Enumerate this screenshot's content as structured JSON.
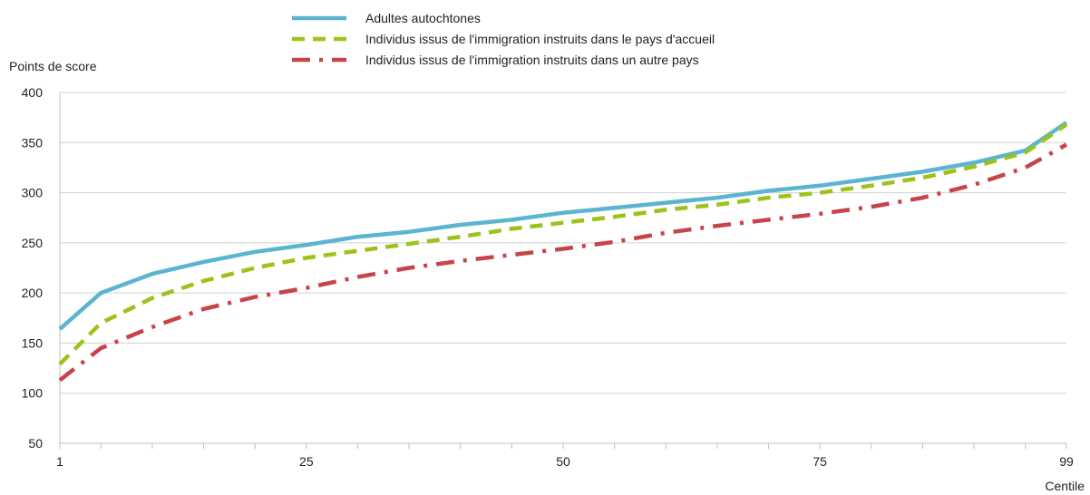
{
  "chart_data": {
    "type": "line",
    "title": "",
    "ylabel": "Points de score",
    "xlabel": "Centile",
    "ylim": [
      50,
      400
    ],
    "xlim": [
      1,
      99
    ],
    "yticks": [
      50,
      100,
      150,
      200,
      250,
      300,
      350,
      400
    ],
    "xtick_labels": [
      {
        "value": 1,
        "label": "1"
      },
      {
        "value": 25,
        "label": "25"
      },
      {
        "value": 50,
        "label": "50"
      },
      {
        "value": 75,
        "label": "75"
      },
      {
        "value": 99,
        "label": "99"
      }
    ],
    "grid": "horizontal",
    "legend_position": "top",
    "x": [
      1,
      5,
      10,
      15,
      20,
      25,
      30,
      35,
      40,
      45,
      50,
      55,
      60,
      65,
      70,
      75,
      80,
      85,
      90,
      95,
      99
    ],
    "series": [
      {
        "name": "Adultes autochtones",
        "color": "#5bb4d0",
        "style": "solid",
        "values": [
          164,
          200,
          219,
          231,
          241,
          248,
          256,
          261,
          268,
          273,
          280,
          285,
          290,
          295,
          302,
          307,
          314,
          321,
          330,
          342,
          370
        ]
      },
      {
        "name": "Individus issus de l'immigration instruits dans le pays d'accueil",
        "color": "#9bc31c",
        "style": "dashed",
        "values": [
          129,
          170,
          195,
          212,
          225,
          235,
          242,
          249,
          256,
          264,
          270,
          276,
          283,
          288,
          295,
          300,
          307,
          315,
          326,
          340,
          368
        ]
      },
      {
        "name": "Individus issus de l'immigration instruits dans un autre pays",
        "color": "#c8434a",
        "style": "dashdot",
        "values": [
          113,
          145,
          166,
          184,
          196,
          205,
          216,
          225,
          232,
          238,
          244,
          251,
          260,
          267,
          273,
          279,
          286,
          295,
          308,
          325,
          348
        ]
      }
    ]
  }
}
